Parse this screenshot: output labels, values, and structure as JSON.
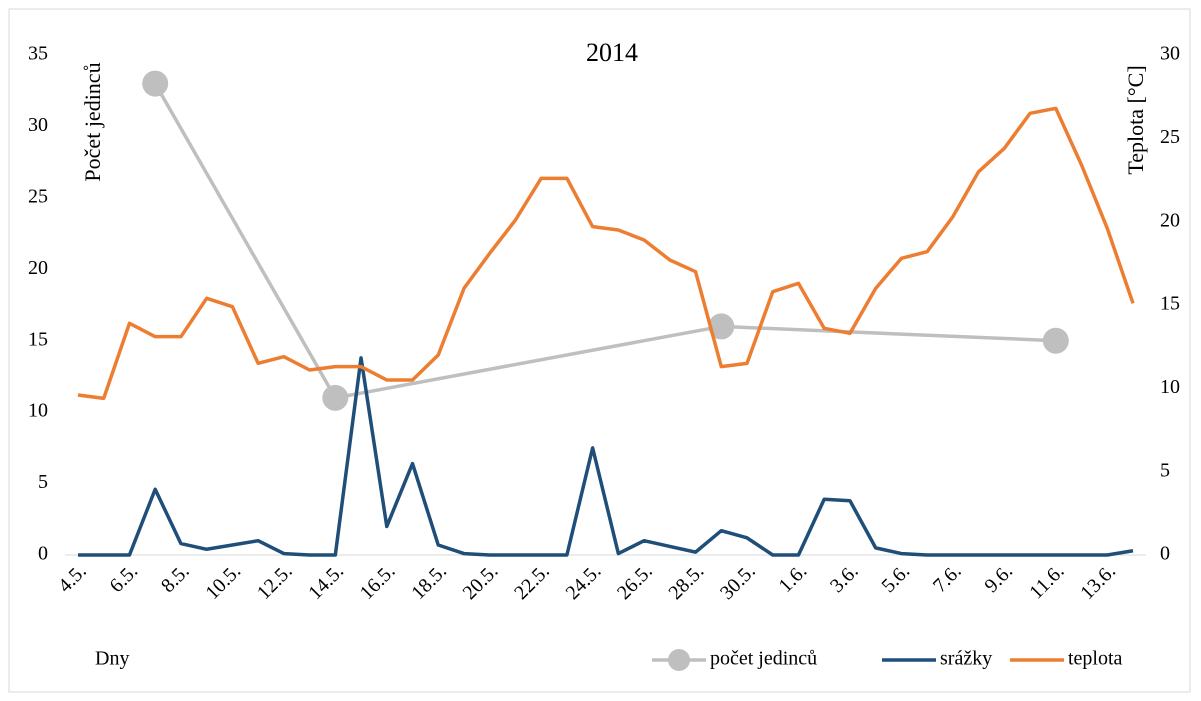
{
  "chart_data": {
    "type": "line",
    "title": "2014",
    "y_label": "Počet jedinců",
    "y2_label": "Teplota [°C]",
    "x_label": "Dny",
    "categories": [
      "4.5.",
      null,
      "6.5.",
      null,
      "8.5.",
      null,
      "10.5.",
      null,
      "12.5.",
      null,
      "14.5.",
      null,
      "16.5.",
      null,
      "18.5.",
      null,
      "20.5.",
      null,
      "22.5.",
      null,
      "24.5.",
      null,
      "26.5.",
      null,
      "28.5.",
      null,
      "30.5.",
      null,
      "1.6.",
      null,
      "3.6.",
      null,
      "5.6.",
      null,
      "7.6.",
      null,
      "9.6.",
      null,
      "11.6.",
      null,
      "13.6.",
      null
    ],
    "series": [
      {
        "name": "počet jedinců",
        "color": "#bfbfbf",
        "marker": "circle",
        "span_gaps": true,
        "values": [
          null,
          null,
          null,
          33,
          null,
          null,
          null,
          null,
          null,
          null,
          11,
          null,
          null,
          null,
          null,
          null,
          null,
          null,
          null,
          null,
          null,
          null,
          null,
          null,
          null,
          16,
          null,
          null,
          null,
          null,
          null,
          null,
          null,
          null,
          null,
          null,
          null,
          null,
          15,
          null,
          null,
          null
        ]
      },
      {
        "name": "srážky",
        "color": "#1f4e79",
        "values": [
          0,
          0,
          0,
          4.6,
          0.8,
          0.4,
          0.7,
          1.0,
          0.1,
          0,
          0,
          13.8,
          2.0,
          6.4,
          0.7,
          0.1,
          0,
          0,
          0,
          0,
          7.5,
          0.1,
          1.0,
          0.6,
          0.2,
          1.7,
          1.2,
          0,
          0,
          3.9,
          3.8,
          0.5,
          0.1,
          0,
          0,
          0,
          0,
          0,
          0,
          0,
          0,
          0.3
        ]
      },
      {
        "name": "teplota",
        "color": "#ed7d31",
        "axis": "y2",
        "values": [
          9.6,
          9.4,
          13.9,
          13.1,
          13.1,
          15.4,
          14.9,
          11.5,
          11.9,
          11.1,
          11.3,
          11.3,
          10.5,
          10.5,
          12.0,
          16.0,
          18.1,
          20.1,
          22.6,
          22.6,
          19.7,
          19.5,
          18.9,
          17.7,
          17.0,
          11.3,
          11.5,
          15.8,
          16.3,
          13.6,
          13.3,
          16.0,
          17.8,
          18.2,
          20.3,
          23.0,
          24.4,
          26.5,
          26.8,
          23.4,
          19.6,
          15.1
        ]
      }
    ],
    "ylim": [
      0,
      35
    ],
    "yticks": [
      0,
      5,
      10,
      15,
      20,
      25,
      30,
      35
    ],
    "y2lim": [
      0,
      30
    ],
    "y2ticks": [
      0,
      5,
      10,
      15,
      20,
      25,
      30
    ],
    "legend": "bottom-right"
  }
}
